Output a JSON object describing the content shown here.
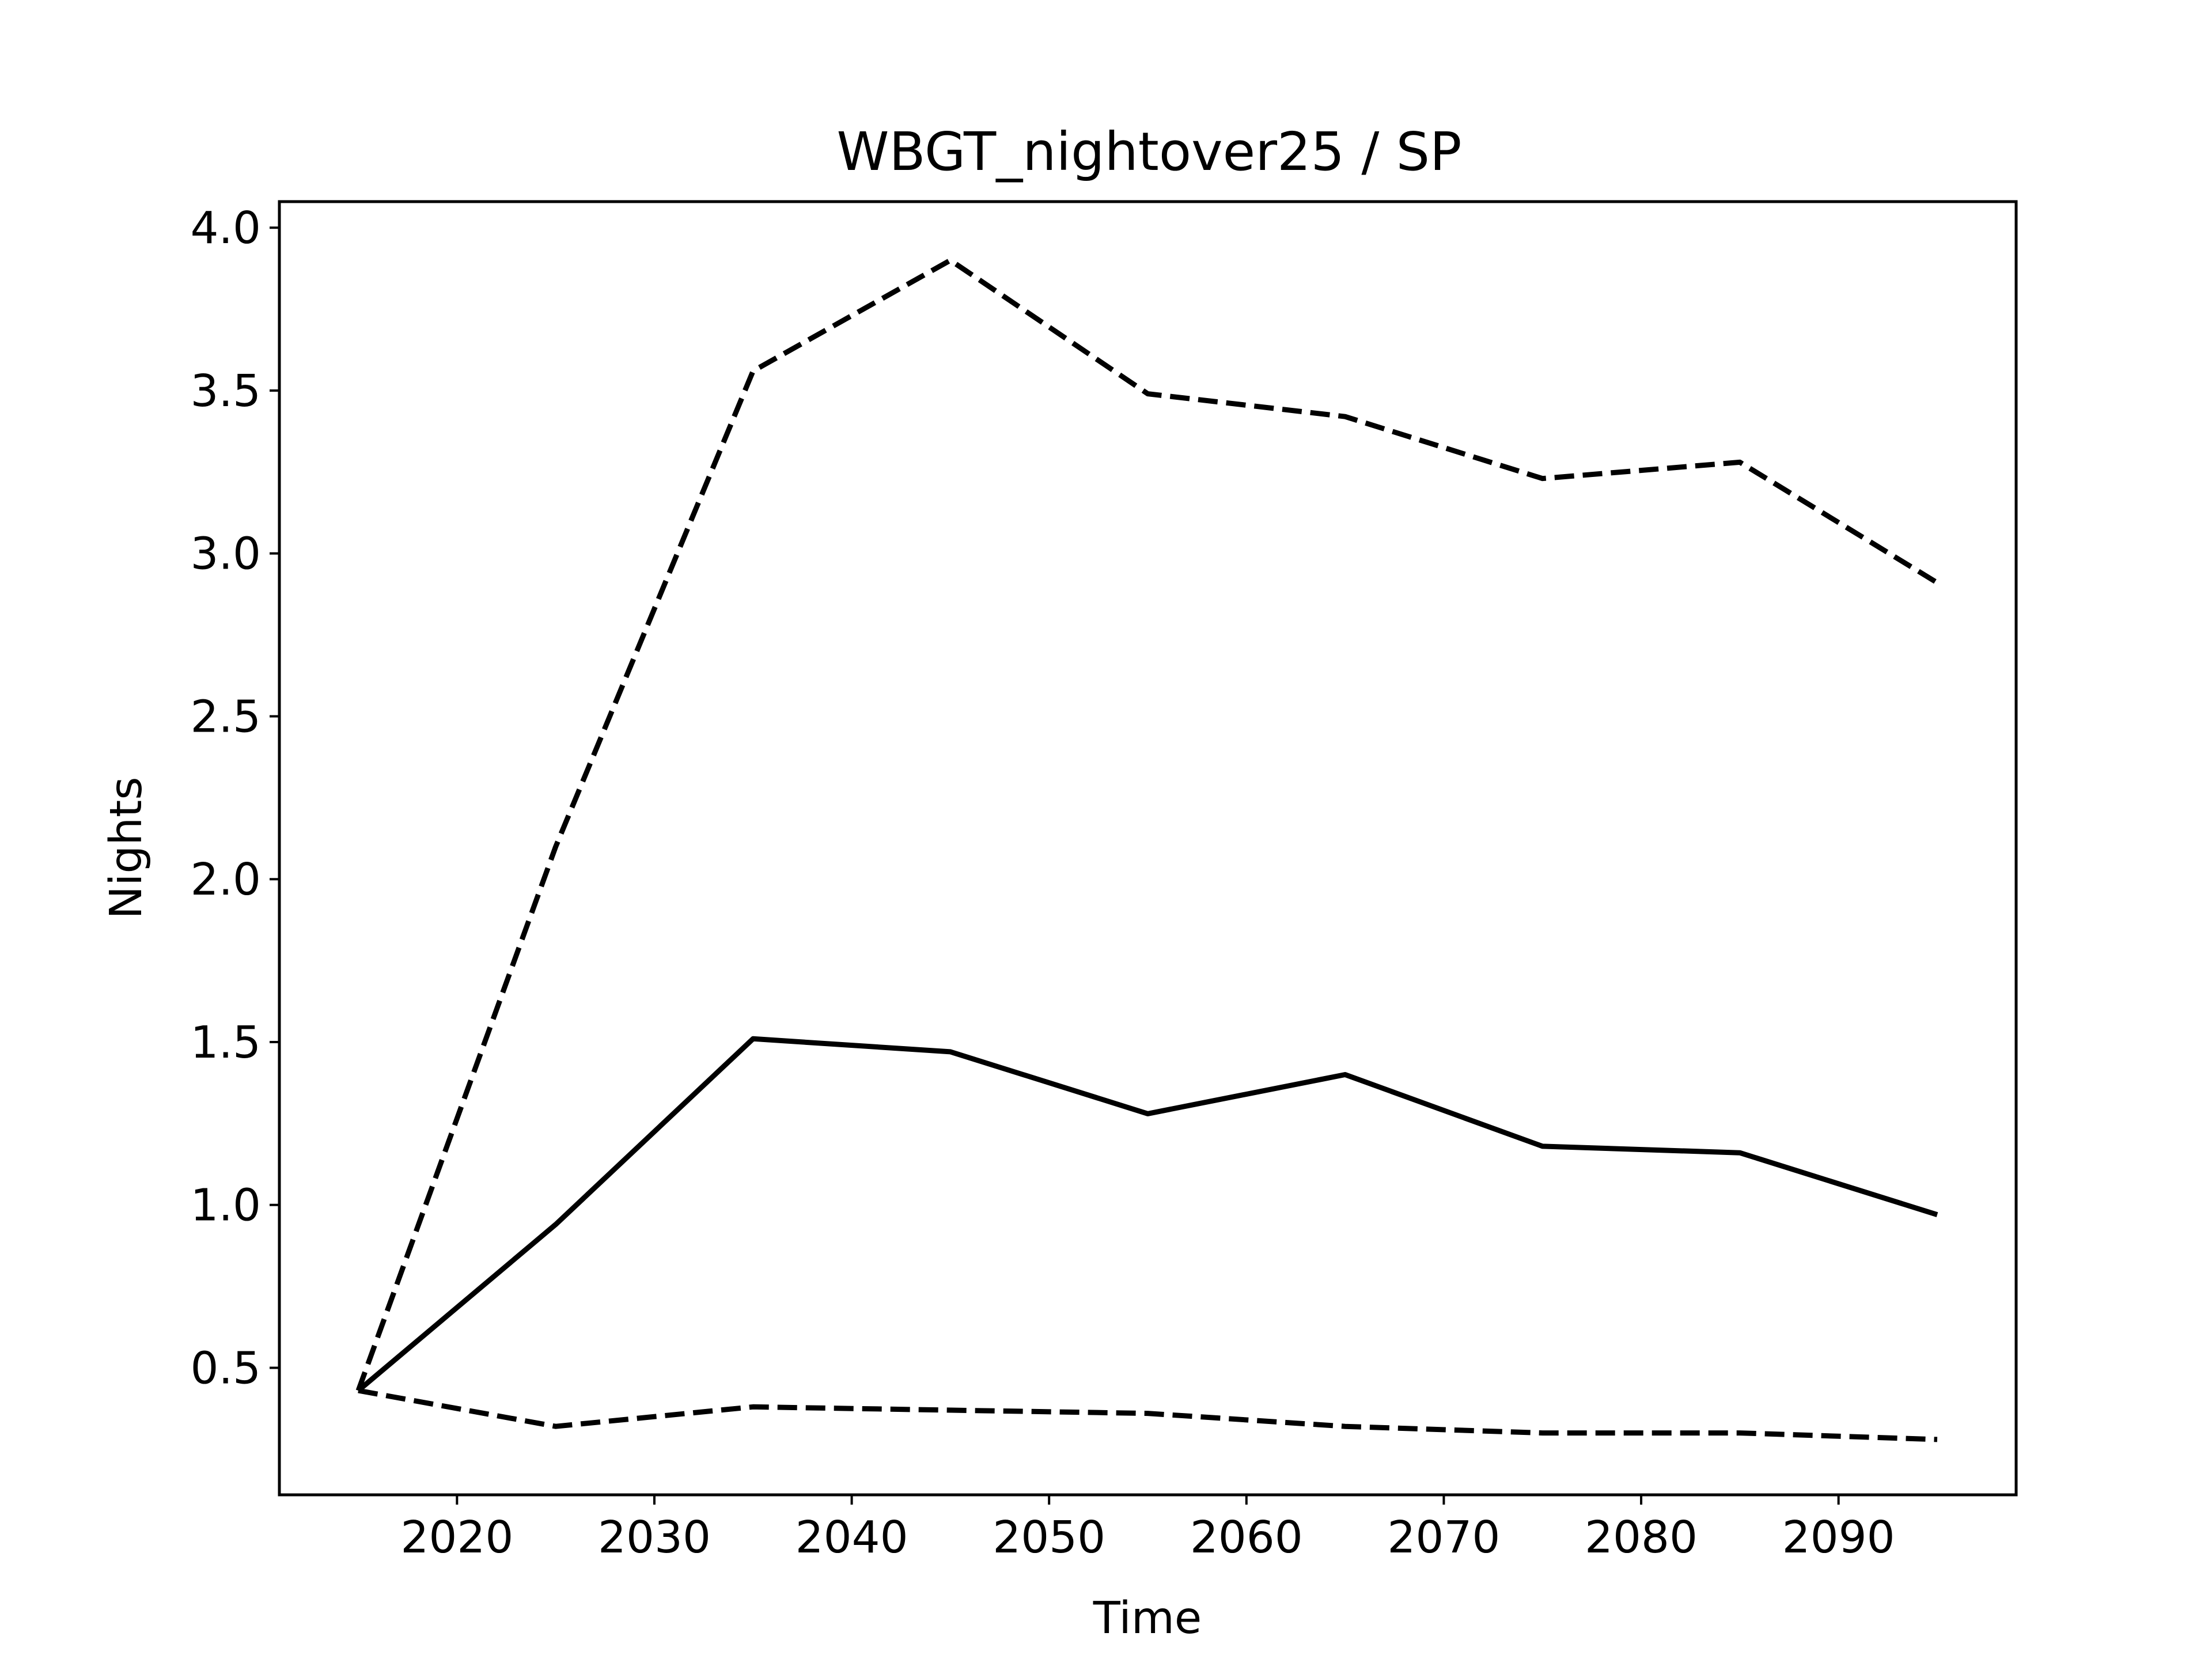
{
  "chart_data": {
    "type": "line",
    "title": "WBGT_nightover25 / SP",
    "xlabel": "Time",
    "ylabel": "Nights",
    "xlim": [
      2011,
      2099
    ],
    "ylim": [
      0.11,
      4.08
    ],
    "xticks": [
      2020,
      2030,
      2040,
      2050,
      2060,
      2070,
      2080,
      2090
    ],
    "yticks": [
      0.5,
      1.0,
      1.5,
      2.0,
      2.5,
      3.0,
      3.5,
      4.0
    ],
    "ytick_labels": [
      "0.5",
      "1.0",
      "1.5",
      "2.0",
      "2.5",
      "3.0",
      "3.5",
      "4.0"
    ],
    "grid": false,
    "x": [
      2015,
      2025,
      2035,
      2045,
      2055,
      2065,
      2075,
      2085,
      2095
    ],
    "series": [
      {
        "style": "dashed",
        "color": "#000000",
        "values": [
          0.43,
          2.1,
          3.56,
          3.9,
          3.49,
          3.42,
          3.23,
          3.28,
          2.91
        ]
      },
      {
        "style": "solid",
        "color": "#000000",
        "values": [
          0.43,
          0.94,
          1.51,
          1.47,
          1.28,
          1.4,
          1.18,
          1.16,
          0.97
        ]
      },
      {
        "style": "dashed",
        "color": "#000000",
        "values": [
          0.43,
          0.32,
          0.38,
          0.37,
          0.36,
          0.32,
          0.3,
          0.3,
          0.28
        ]
      }
    ]
  }
}
